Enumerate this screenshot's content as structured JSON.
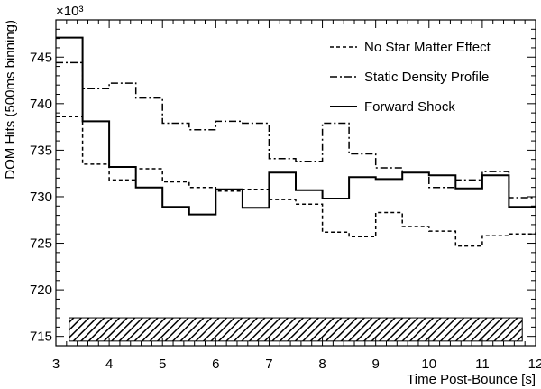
{
  "chart_data": {
    "type": "line",
    "xlabel": "Time Post-Bounce [s]",
    "ylabel": "DOM Hits (500ms binning)",
    "y_multiplier": "×10³",
    "xlim": [
      3,
      12
    ],
    "ylim": [
      714,
      749
    ],
    "x_ticks": [
      "3",
      "4",
      "5",
      "6",
      "7",
      "8",
      "9",
      "10",
      "11",
      "12"
    ],
    "y_ticks": [
      "715",
      "720",
      "725",
      "730",
      "735",
      "740",
      "745"
    ],
    "bin_edges": [
      3.0,
      3.5,
      4.0,
      4.5,
      5.0,
      5.5,
      6.0,
      6.5,
      7.0,
      7.5,
      8.0,
      8.5,
      9.0,
      9.5,
      10.0,
      10.5,
      11.0,
      11.5,
      12.0
    ],
    "series": [
      {
        "name": "No Star Matter Effect",
        "style": "dashed",
        "values": [
          738.6,
          733.5,
          731.8,
          733.0,
          731.6,
          731.0,
          730.6,
          730.8,
          729.7,
          729.2,
          726.2,
          725.7,
          728.3,
          726.8,
          726.3,
          724.7,
          725.8,
          726.0,
          726.2
        ]
      },
      {
        "name": "Static Density Profile",
        "style": "dash-dot",
        "values": [
          744.4,
          741.6,
          742.2,
          740.6,
          737.9,
          737.2,
          738.1,
          737.9,
          734.1,
          733.8,
          737.9,
          734.6,
          733.1,
          732.6,
          731.0,
          731.8,
          732.7,
          729.9,
          729.9
        ]
      },
      {
        "name": "Forward Shock",
        "style": "solid",
        "values": [
          747.1,
          738.1,
          733.2,
          731.0,
          728.9,
          728.1,
          730.8,
          728.8,
          732.6,
          730.7,
          729.8,
          732.1,
          731.9,
          732.6,
          732.3,
          730.9,
          732.3,
          728.9,
          728.9
        ]
      }
    ],
    "band": {
      "x_range": [
        3.25,
        11.75
      ],
      "y_range": [
        714.5,
        717.0
      ],
      "fill": "hatched"
    },
    "legend_placement": "top-right",
    "grid": false
  }
}
